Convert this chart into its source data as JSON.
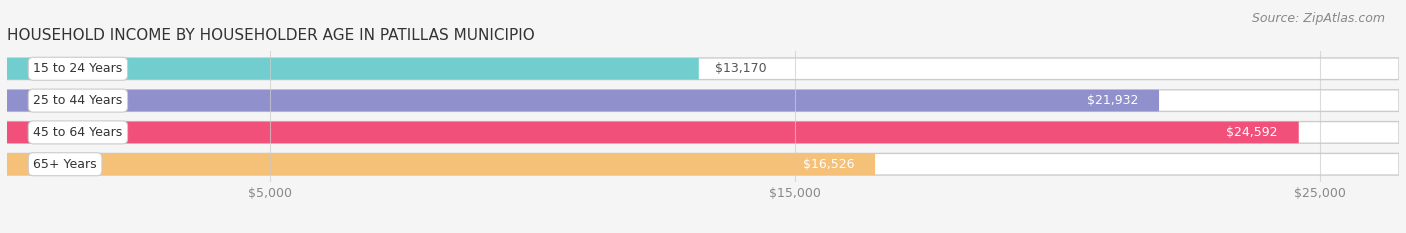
{
  "title": "HOUSEHOLD INCOME BY HOUSEHOLDER AGE IN PATILLAS MUNICIPIO",
  "source": "Source: ZipAtlas.com",
  "categories": [
    "15 to 24 Years",
    "25 to 44 Years",
    "45 to 64 Years",
    "65+ Years"
  ],
  "values": [
    13170,
    21932,
    24592,
    16526
  ],
  "labels": [
    "$13,170",
    "$21,932",
    "$24,592",
    "$16,526"
  ],
  "bar_colors": [
    "#72cece",
    "#9090cc",
    "#f0507a",
    "#f5c078"
  ],
  "background_color": "#f5f5f5",
  "bar_bg_color": "#ffffff",
  "bar_bg_border": "#dddddd",
  "xlim_max": 26500,
  "xticks": [
    5000,
    15000,
    25000
  ],
  "xticklabels": [
    "$5,000",
    "$15,000",
    "$25,000"
  ],
  "title_fontsize": 11,
  "label_fontsize": 9,
  "tick_fontsize": 9,
  "source_fontsize": 9
}
